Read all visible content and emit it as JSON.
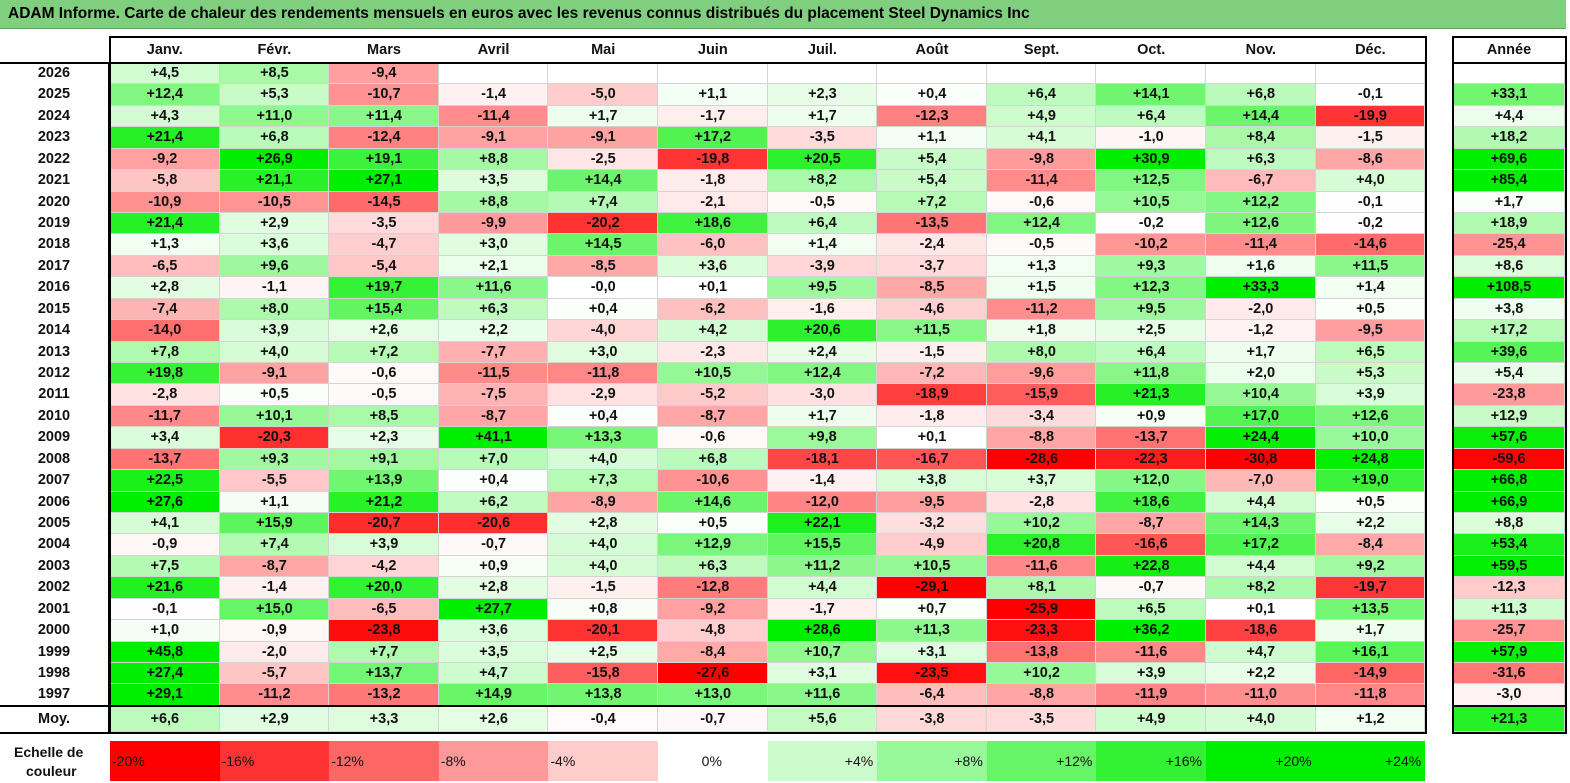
{
  "title": "ADAM Informe. Carte de chaleur des rendements mensuels en euros avec les revenus connus distribués du placement Steel Dynamics Inc",
  "chart_data": {
    "type": "heatmap",
    "months": [
      "Janv.",
      "Févr.",
      "Mars",
      "Avril",
      "Mai",
      "Juin",
      "Juil.",
      "Août",
      "Sept.",
      "Oct.",
      "Nov.",
      "Déc."
    ],
    "year_header": "Année",
    "avg_label": "Moy.",
    "rows": [
      {
        "year": "2026",
        "values": [
          "+4,5",
          "+8,5",
          "-9,4",
          null,
          null,
          null,
          null,
          null,
          null,
          null,
          null,
          null
        ],
        "total": null
      },
      {
        "year": "2025",
        "values": [
          "+12,4",
          "+5,3",
          "-10,7",
          "-1,4",
          "-5,0",
          "+1,1",
          "+2,3",
          "+0,4",
          "+6,4",
          "+14,1",
          "+6,8",
          "-0,1"
        ],
        "total": "+33,1"
      },
      {
        "year": "2024",
        "values": [
          "+4,3",
          "+11,0",
          "+11,4",
          "-11,4",
          "+1,7",
          "-1,7",
          "+1,7",
          "-12,3",
          "+4,9",
          "+6,4",
          "+14,4",
          "-19,9"
        ],
        "total": "+4,4"
      },
      {
        "year": "2023",
        "values": [
          "+21,4",
          "+6,8",
          "-12,4",
          "-9,1",
          "-9,1",
          "+17,2",
          "-3,5",
          "+1,1",
          "+4,1",
          "-1,0",
          "+8,4",
          "-1,5"
        ],
        "total": "+18,2"
      },
      {
        "year": "2022",
        "values": [
          "-9,2",
          "+26,9",
          "+19,1",
          "+8,8",
          "-2,5",
          "-19,8",
          "+20,5",
          "+5,4",
          "-9,8",
          "+30,9",
          "+6,3",
          "-8,6"
        ],
        "total": "+69,6"
      },
      {
        "year": "2021",
        "values": [
          "-5,8",
          "+21,1",
          "+27,1",
          "+3,5",
          "+14,4",
          "-1,8",
          "+8,2",
          "+5,4",
          "-11,4",
          "+12,5",
          "-6,7",
          "+4,0"
        ],
        "total": "+85,4"
      },
      {
        "year": "2020",
        "values": [
          "-10,9",
          "-10,5",
          "-14,5",
          "+8,8",
          "+7,4",
          "-2,1",
          "-0,5",
          "+7,2",
          "-0,6",
          "+10,5",
          "+12,2",
          "-0,1"
        ],
        "total": "+1,7"
      },
      {
        "year": "2019",
        "values": [
          "+21,4",
          "+2,9",
          "-3,5",
          "-9,9",
          "-20,2",
          "+18,6",
          "+6,4",
          "-13,5",
          "+12,4",
          "-0,2",
          "+12,6",
          "-0,2"
        ],
        "total": "+18,9"
      },
      {
        "year": "2018",
        "values": [
          "+1,3",
          "+3,6",
          "-4,7",
          "+3,0",
          "+14,5",
          "-6,0",
          "+1,4",
          "-2,4",
          "-0,5",
          "-10,2",
          "-11,4",
          "-14,6"
        ],
        "total": "-25,4"
      },
      {
        "year": "2017",
        "values": [
          "-6,5",
          "+9,6",
          "-5,4",
          "+2,1",
          "-8,5",
          "+3,6",
          "-3,9",
          "-3,7",
          "+1,3",
          "+9,3",
          "+1,6",
          "+11,5"
        ],
        "total": "+8,6"
      },
      {
        "year": "2016",
        "values": [
          "+2,8",
          "-1,1",
          "+19,7",
          "+11,6",
          "-0,0",
          "+0,1",
          "+9,5",
          "-8,5",
          "+1,5",
          "+12,3",
          "+33,3",
          "+1,4"
        ],
        "total": "+108,5"
      },
      {
        "year": "2015",
        "values": [
          "-7,4",
          "+8,0",
          "+15,4",
          "+6,3",
          "+0,4",
          "-6,2",
          "-1,6",
          "-4,6",
          "-11,2",
          "+9,5",
          "-2,0",
          "+0,5"
        ],
        "total": "+3,8"
      },
      {
        "year": "2014",
        "values": [
          "-14,0",
          "+3,9",
          "+2,6",
          "+2,2",
          "-4,0",
          "+4,2",
          "+20,6",
          "+11,5",
          "+1,8",
          "+2,5",
          "-1,2",
          "-9,5"
        ],
        "total": "+17,2"
      },
      {
        "year": "2013",
        "values": [
          "+7,8",
          "+4,0",
          "+7,2",
          "-7,7",
          "+3,0",
          "-2,3",
          "+2,4",
          "-1,5",
          "+8,0",
          "+6,4",
          "+1,7",
          "+6,5"
        ],
        "total": "+39,6"
      },
      {
        "year": "2012",
        "values": [
          "+19,8",
          "-9,1",
          "-0,6",
          "-11,5",
          "-11,8",
          "+10,5",
          "+12,4",
          "-7,2",
          "-9,6",
          "+11,8",
          "+2,0",
          "+5,3"
        ],
        "total": "+5,4"
      },
      {
        "year": "2011",
        "values": [
          "-2,8",
          "+0,5",
          "-0,5",
          "-7,5",
          "-2,9",
          "-5,2",
          "-3,0",
          "-18,9",
          "-15,9",
          "+21,3",
          "+10,4",
          "+3,9"
        ],
        "total": "-23,8"
      },
      {
        "year": "2010",
        "values": [
          "-11,7",
          "+10,1",
          "+8,5",
          "-8,7",
          "+0,4",
          "-8,7",
          "+1,7",
          "-1,8",
          "-3,4",
          "+0,9",
          "+17,0",
          "+12,6"
        ],
        "total": "+12,9"
      },
      {
        "year": "2009",
        "values": [
          "+3,4",
          "-20,3",
          "+2,3",
          "+41,1",
          "+13,3",
          "-0,6",
          "+9,8",
          "+0,1",
          "-8,8",
          "-13,7",
          "+24,4",
          "+10,0"
        ],
        "total": "+57,6"
      },
      {
        "year": "2008",
        "values": [
          "-13,7",
          "+9,3",
          "+9,1",
          "+7,0",
          "+4,0",
          "+6,8",
          "-18,1",
          "-16,7",
          "-28,6",
          "-22,3",
          "-30,8",
          "+24,8"
        ],
        "total": "-59,6"
      },
      {
        "year": "2007",
        "values": [
          "+22,5",
          "-5,5",
          "+13,9",
          "+0,4",
          "+7,3",
          "-10,6",
          "-1,4",
          "+3,8",
          "+3,7",
          "+12,0",
          "-7,0",
          "+19,0"
        ],
        "total": "+66,8"
      },
      {
        "year": "2006",
        "values": [
          "+27,6",
          "+1,1",
          "+21,2",
          "+6,2",
          "-8,9",
          "+14,6",
          "-12,0",
          "-9,5",
          "-2,8",
          "+18,6",
          "+4,4",
          "+0,5"
        ],
        "total": "+66,9"
      },
      {
        "year": "2005",
        "values": [
          "+4,1",
          "+15,9",
          "-20,7",
          "-20,6",
          "+2,8",
          "+0,5",
          "+22,1",
          "-3,2",
          "+10,2",
          "-8,7",
          "+14,3",
          "+2,2"
        ],
        "total": "+8,8"
      },
      {
        "year": "2004",
        "values": [
          "-0,9",
          "+7,4",
          "+3,9",
          "-0,7",
          "+4,0",
          "+12,9",
          "+15,5",
          "-4,9",
          "+20,8",
          "-16,6",
          "+17,2",
          "-8,4"
        ],
        "total": "+53,4"
      },
      {
        "year": "2003",
        "values": [
          "+7,5",
          "-8,7",
          "-4,2",
          "+0,9",
          "+4,0",
          "+6,3",
          "+11,2",
          "+10,5",
          "-11,6",
          "+22,8",
          "+4,4",
          "+9,2"
        ],
        "total": "+59,5"
      },
      {
        "year": "2002",
        "values": [
          "+21,6",
          "-1,4",
          "+20,0",
          "+2,8",
          "-1,5",
          "-12,8",
          "+4,4",
          "-29,1",
          "+8,1",
          "-0,7",
          "+8,2",
          "-19,7"
        ],
        "total": "-12,3"
      },
      {
        "year": "2001",
        "values": [
          "-0,1",
          "+15,0",
          "-6,5",
          "+27,7",
          "+0,8",
          "-9,2",
          "-1,7",
          "+0,7",
          "-25,9",
          "+6,5",
          "+0,1",
          "+13,5"
        ],
        "total": "+11,3"
      },
      {
        "year": "2000",
        "values": [
          "+1,0",
          "-0,9",
          "-23,8",
          "+3,6",
          "-20,1",
          "-4,8",
          "+28,6",
          "+11,3",
          "-23,3",
          "+36,2",
          "-18,6",
          "+1,7"
        ],
        "total": "-25,7"
      },
      {
        "year": "1999",
        "values": [
          "+45,8",
          "-2,0",
          "+7,7",
          "+3,5",
          "+2,5",
          "-8,4",
          "+10,7",
          "+3,1",
          "-13,8",
          "-11,6",
          "+4,7",
          "+16,1"
        ],
        "total": "+57,9"
      },
      {
        "year": "1998",
        "values": [
          "+27,4",
          "-5,7",
          "+13,7",
          "+4,7",
          "-15,8",
          "-27,6",
          "+3,1",
          "-23,5",
          "+10,2",
          "+3,9",
          "+2,2",
          "-14,9"
        ],
        "total": "-31,6"
      },
      {
        "year": "1997",
        "values": [
          "+29,1",
          "-11,2",
          "-13,2",
          "+14,9",
          "+13,8",
          "+13,0",
          "+11,6",
          "-6,4",
          "-8,8",
          "-11,9",
          "-11,0",
          "-11,8"
        ],
        "total": "-3,0"
      }
    ],
    "average": {
      "values": [
        "+6,6",
        "+2,9",
        "+3,3",
        "+2,6",
        "-0,4",
        "-0,7",
        "+5,6",
        "-3,8",
        "-3,5",
        "+4,9",
        "+4,0",
        "+1,2"
      ],
      "total": "+21,3"
    },
    "color_scale": {
      "label_line1": "Echelle de",
      "label_line2": "couleur",
      "steps": [
        "-20%",
        "-16%",
        "-12%",
        "-8%",
        "-4%",
        "0%",
        "+4%",
        "+8%",
        "+12%",
        "+16%",
        "+20%",
        "+24%"
      ]
    },
    "colors": {
      "negative_max": "#ff0000",
      "neutral": "#ffffff",
      "positive_max": "#00ee00",
      "title_bg": "#7fcf7f"
    }
  }
}
